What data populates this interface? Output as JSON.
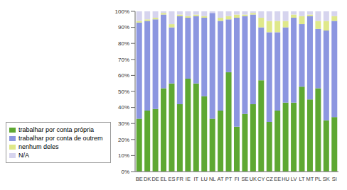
{
  "chart_data": {
    "type": "bar",
    "stacked": true,
    "grid": false,
    "categories": [
      "BE",
      "DK",
      "DE",
      "EL",
      "ES",
      "FR",
      "IE",
      "IT",
      "LU",
      "NL",
      "AT",
      "PT",
      "FI",
      "SE",
      "UK",
      "CY",
      "CZ",
      "EE",
      "HU",
      "LV",
      "LT",
      "MT",
      "PL",
      "SK",
      "SI"
    ],
    "ylim": [
      0,
      100
    ],
    "yticks": [
      {
        "value": 0,
        "label": "0%"
      },
      {
        "value": 10,
        "label": "10%"
      },
      {
        "value": 20,
        "label": "20%"
      },
      {
        "value": 30,
        "label": "30%"
      },
      {
        "value": 40,
        "label": "40%"
      },
      {
        "value": 50,
        "label": "50%"
      },
      {
        "value": 60,
        "label": "60%"
      },
      {
        "value": 70,
        "label": "70%"
      },
      {
        "value": 80,
        "label": "80%"
      },
      {
        "value": 90,
        "label": "90%"
      },
      {
        "value": 100,
        "label": "100%"
      }
    ],
    "legend": "lower left",
    "series": [
      {
        "name": "trabalhar por conta própria",
        "color": "#5ea832",
        "values": [
          33,
          38,
          39,
          52,
          55,
          42,
          58,
          55,
          47,
          33,
          38,
          62,
          28,
          36,
          42,
          57,
          31,
          38,
          43,
          43,
          53,
          45,
          52,
          32,
          34
        ]
      },
      {
        "name": "trabalhar por conta de outrem",
        "color": "#8c96e0",
        "values": [
          60,
          56,
          56,
          46,
          35,
          55,
          38,
          42,
          49,
          66,
          56,
          33,
          68,
          61,
          56,
          33,
          56,
          49,
          47,
          53,
          39,
          52,
          37,
          56,
          60
        ]
      },
      {
        "name": "nenhum deles",
        "color": "#dfe88a",
        "values": [
          1,
          1,
          1,
          1,
          2,
          1,
          1,
          1,
          1,
          0,
          2,
          2,
          2,
          1,
          1,
          6,
          7,
          7,
          4,
          2,
          5,
          1,
          5,
          6,
          3
        ]
      },
      {
        "name": "N/A",
        "color": "#d6d4ee",
        "values": [
          6,
          5,
          4,
          1,
          8,
          2,
          3,
          2,
          3,
          1,
          4,
          3,
          2,
          2,
          1,
          4,
          6,
          6,
          6,
          2,
          3,
          2,
          6,
          6,
          3
        ]
      }
    ]
  }
}
